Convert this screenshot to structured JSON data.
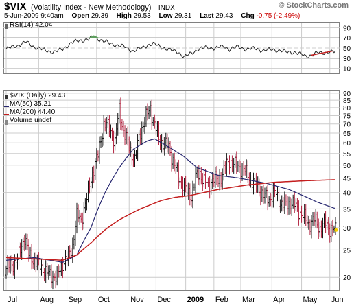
{
  "header": {
    "ticker": "$VIX",
    "name": "(Volatility Index - New Methodology)",
    "exchange": "INDX",
    "brand": "© StockCharts.com",
    "timestamp": "5-Jun-2009 9:40am",
    "stats": [
      {
        "label": "Open",
        "value": "29.39"
      },
      {
        "label": "High",
        "value": "29.53"
      },
      {
        "label": "Low",
        "value": "29.31"
      },
      {
        "label": "Last",
        "value": "29.43"
      },
      {
        "label": "Chg",
        "value": "-0.75 (-2.49%)"
      }
    ],
    "chg_color": "#cc0000",
    "chg_arrow": "down-triangle-icon"
  },
  "rsi_panel": {
    "legend": "RSI(14) 42.04",
    "yticks": [
      90,
      70,
      50,
      30,
      10
    ],
    "ylim": [
      0,
      100
    ],
    "overbought": 70,
    "oversold": 30
  },
  "price_panel": {
    "legend": {
      "main": "$VIX (Daily) 29.43",
      "ma50": "MA(50) 35.21",
      "ma200": "MA(200) 44.40",
      "volume": "Volume undef"
    },
    "yticks": [
      90,
      85,
      80,
      75,
      70,
      65,
      60,
      55,
      50,
      45,
      40,
      35,
      30,
      25,
      20
    ],
    "ylim": [
      18,
      92
    ],
    "log_scale": true
  },
  "xaxis": {
    "labels": [
      {
        "label": "Jul",
        "day": 0,
        "bold": false
      },
      {
        "label": "Aug",
        "day": 23,
        "bold": false
      },
      {
        "label": "Sep",
        "day": 43,
        "bold": false
      },
      {
        "label": "Oct",
        "day": 64,
        "bold": false
      },
      {
        "label": "Nov",
        "day": 87,
        "bold": false
      },
      {
        "label": "Dec",
        "day": 106,
        "bold": false
      },
      {
        "label": "2009",
        "day": 127,
        "bold": true
      },
      {
        "label": "Feb",
        "day": 147,
        "bold": false
      },
      {
        "label": "Mar",
        "day": 166,
        "bold": false
      },
      {
        "label": "Apr",
        "day": 188,
        "bold": false
      },
      {
        "label": "May",
        "day": 209,
        "bold": false
      },
      {
        "label": "Jun",
        "day": 229,
        "bold": false
      }
    ],
    "total_days": 233
  },
  "colors": {
    "up_bar": "#111111",
    "down_bar": "#b2223f",
    "ma50": "#24246e",
    "ma200": "#c41e1e",
    "rsi": "#222222",
    "rsi_overbought_fill": "#5f9f5f",
    "grid": "#cccccc"
  },
  "chart_data": {
    "type": "line",
    "title": "$VIX (Volatility Index - New Methodology)",
    "x_unit": "trading days from early Jul 2008 to 5-Jun-2009",
    "series": [
      {
        "name": "$VIX",
        "points": [
          [
            0,
            21.5
          ],
          [
            8,
            23
          ],
          [
            13,
            28
          ],
          [
            16,
            24
          ],
          [
            22,
            22.5
          ],
          [
            30,
            20.5
          ],
          [
            36,
            20
          ],
          [
            40,
            22.5
          ],
          [
            44,
            23.5
          ],
          [
            47,
            26
          ],
          [
            50,
            33
          ],
          [
            53,
            32
          ],
          [
            57,
            38
          ],
          [
            61,
            47
          ],
          [
            65,
            54
          ],
          [
            69,
            70
          ],
          [
            73,
            68
          ],
          [
            77,
            60
          ],
          [
            80,
            79
          ],
          [
            83,
            66
          ],
          [
            87,
            58
          ],
          [
            91,
            52
          ],
          [
            95,
            66
          ],
          [
            99,
            74
          ],
          [
            102,
            80
          ],
          [
            104,
            72
          ],
          [
            108,
            62
          ],
          [
            111,
            60
          ],
          [
            115,
            58
          ],
          [
            118,
            52
          ],
          [
            122,
            45
          ],
          [
            125,
            43
          ],
          [
            128,
            40
          ],
          [
            131,
            39
          ],
          [
            134,
            45
          ],
          [
            137,
            47
          ],
          [
            140,
            44
          ],
          [
            143,
            42
          ],
          [
            146,
            45
          ],
          [
            150,
            44
          ],
          [
            154,
            48
          ],
          [
            158,
            52
          ],
          [
            162,
            50
          ],
          [
            166,
            49
          ],
          [
            170,
            47
          ],
          [
            174,
            44
          ],
          [
            178,
            42
          ],
          [
            182,
            39
          ],
          [
            186,
            38
          ],
          [
            190,
            40
          ],
          [
            194,
            37
          ],
          [
            198,
            36
          ],
          [
            202,
            37
          ],
          [
            206,
            35
          ],
          [
            210,
            33
          ],
          [
            214,
            31
          ],
          [
            218,
            32
          ],
          [
            222,
            30
          ],
          [
            226,
            31
          ],
          [
            229,
            29.8
          ],
          [
            232,
            29.43
          ]
        ]
      },
      {
        "name": "MA(50)",
        "points": [
          [
            0,
            23
          ],
          [
            20,
            23.5
          ],
          [
            40,
            22.6
          ],
          [
            50,
            24
          ],
          [
            60,
            30
          ],
          [
            70,
            40
          ],
          [
            80,
            49
          ],
          [
            90,
            57
          ],
          [
            100,
            61
          ],
          [
            105,
            62
          ],
          [
            115,
            58
          ],
          [
            125,
            54
          ],
          [
            135,
            49
          ],
          [
            150,
            46
          ],
          [
            165,
            45
          ],
          [
            185,
            43
          ],
          [
            200,
            41
          ],
          [
            210,
            39
          ],
          [
            220,
            37
          ],
          [
            232,
            35.21
          ]
        ]
      },
      {
        "name": "MA(200)",
        "points": [
          [
            0,
            23.5
          ],
          [
            40,
            23
          ],
          [
            50,
            24
          ],
          [
            60,
            26.5
          ],
          [
            70,
            29.5
          ],
          [
            80,
            32
          ],
          [
            95,
            35
          ],
          [
            110,
            37.5
          ],
          [
            120,
            38.5
          ],
          [
            130,
            39
          ],
          [
            150,
            41
          ],
          [
            170,
            42.5
          ],
          [
            190,
            43.5
          ],
          [
            210,
            44
          ],
          [
            232,
            44.4
          ]
        ]
      },
      {
        "name": "RSI(14)",
        "points": [
          [
            0,
            48
          ],
          [
            8,
            55
          ],
          [
            14,
            62
          ],
          [
            20,
            52
          ],
          [
            28,
            45
          ],
          [
            34,
            42
          ],
          [
            40,
            48
          ],
          [
            46,
            60
          ],
          [
            52,
            65
          ],
          [
            58,
            67
          ],
          [
            62,
            72
          ],
          [
            67,
            66
          ],
          [
            72,
            60
          ],
          [
            78,
            56
          ],
          [
            84,
            52
          ],
          [
            90,
            44
          ],
          [
            96,
            50
          ],
          [
            100,
            56
          ],
          [
            104,
            58
          ],
          [
            110,
            52
          ],
          [
            116,
            46
          ],
          [
            122,
            42
          ],
          [
            126,
            32
          ],
          [
            130,
            38
          ],
          [
            136,
            48
          ],
          [
            142,
            51
          ],
          [
            148,
            50
          ],
          [
            154,
            53
          ],
          [
            158,
            48
          ],
          [
            164,
            52
          ],
          [
            170,
            48
          ],
          [
            176,
            49
          ],
          [
            182,
            45
          ],
          [
            188,
            47
          ],
          [
            194,
            45
          ],
          [
            198,
            42
          ],
          [
            204,
            42
          ],
          [
            208,
            38
          ],
          [
            212,
            34
          ],
          [
            216,
            36
          ],
          [
            220,
            40
          ],
          [
            224,
            41
          ],
          [
            228,
            42
          ],
          [
            232,
            42.04
          ]
        ]
      }
    ],
    "rsi_yrange": [
      0,
      100
    ],
    "price_yrange": [
      18,
      92
    ],
    "price_scale": "log"
  }
}
